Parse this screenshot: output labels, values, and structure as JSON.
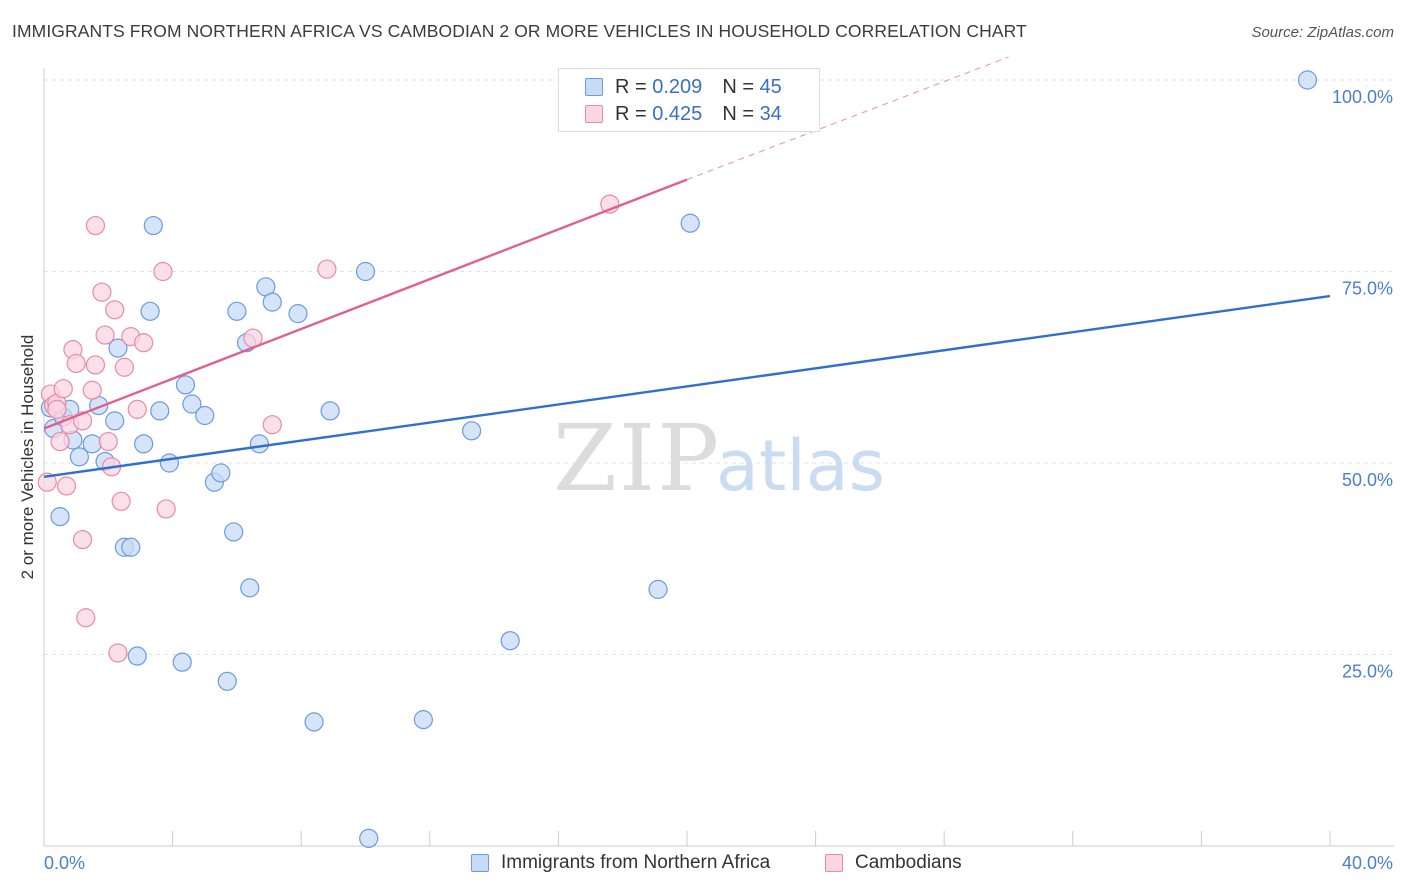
{
  "header": {
    "title": "IMMIGRANTS FROM NORTHERN AFRICA VS CAMBODIAN 2 OR MORE VEHICLES IN HOUSEHOLD CORRELATION CHART",
    "source": "Source: ZipAtlas.com"
  },
  "watermark": {
    "zip": "ZIP",
    "atlas": "atlas"
  },
  "legend": {
    "rows": [
      {
        "r_label": "R =",
        "r_value": "0.209",
        "n_label": "N =",
        "n_value": "45",
        "color": "#a8c6f0",
        "border": "#6b9be0"
      },
      {
        "r_label": "R =",
        "r_value": "0.425",
        "n_label": "N =",
        "n_value": "34",
        "color": "#f8c5d5",
        "border": "#e88aa8"
      }
    ]
  },
  "bottom_legend": [
    {
      "label": "Immigrants from Northern Africa",
      "color": "#c7dbf5",
      "border": "#6b9be0"
    },
    {
      "label": "Cambodians",
      "color": "#fbd6e1",
      "border": "#e88aa8"
    }
  ],
  "chart_data": {
    "type": "scatter",
    "title": "IMMIGRANTS FROM NORTHERN AFRICA VS CAMBODIAN 2 OR MORE VEHICLES IN HOUSEHOLD CORRELATION CHART",
    "xlabel": "",
    "ylabel": "2 or more Vehicles in Household",
    "xlim": [
      0,
      40
    ],
    "ylim": [
      0,
      102
    ],
    "x_tick_labels": [
      "0.0%",
      "40.0%"
    ],
    "y_ticks": [
      25,
      50,
      75,
      100
    ],
    "y_tick_labels": [
      "25.0%",
      "50.0%",
      "75.0%",
      "100.0%"
    ],
    "grid": true,
    "legend_position": "top-center",
    "series": [
      {
        "name": "Immigrants from Northern Africa",
        "color": "#6b9be0",
        "fill": "#c7dbf5",
        "R": 0.209,
        "N": 45,
        "trend": {
          "x0": 0,
          "y0": 48.2,
          "x1": 40,
          "y1": 71.8
        },
        "points": [
          [
            0.3,
            54.5
          ],
          [
            0.5,
            43.0
          ],
          [
            0.6,
            56.0
          ],
          [
            0.8,
            57.0
          ],
          [
            0.9,
            53.0
          ],
          [
            1.1,
            50.8
          ],
          [
            1.5,
            52.5
          ],
          [
            1.7,
            57.5
          ],
          [
            1.9,
            50.2
          ],
          [
            2.2,
            55.5
          ],
          [
            2.3,
            65.0
          ],
          [
            2.5,
            39.0
          ],
          [
            2.7,
            39.0
          ],
          [
            2.9,
            24.8
          ],
          [
            3.1,
            52.5
          ],
          [
            3.3,
            69.8
          ],
          [
            3.4,
            81.0
          ],
          [
            3.6,
            56.8
          ],
          [
            3.9,
            50.0
          ],
          [
            4.3,
            24.0
          ],
          [
            4.4,
            60.2
          ],
          [
            4.6,
            57.7
          ],
          [
            5.0,
            56.2
          ],
          [
            5.3,
            47.5
          ],
          [
            5.5,
            48.7
          ],
          [
            5.7,
            21.5
          ],
          [
            5.9,
            41.0
          ],
          [
            6.0,
            69.8
          ],
          [
            6.3,
            65.7
          ],
          [
            6.4,
            33.7
          ],
          [
            6.7,
            52.5
          ],
          [
            6.9,
            73.0
          ],
          [
            7.1,
            71.0
          ],
          [
            7.9,
            69.5
          ],
          [
            8.4,
            16.2
          ],
          [
            8.9,
            56.8
          ],
          [
            10.0,
            75.0
          ],
          [
            10.1,
            1.0
          ],
          [
            11.8,
            16.5
          ],
          [
            13.3,
            54.2
          ],
          [
            14.5,
            26.8
          ],
          [
            19.1,
            33.5
          ],
          [
            20.1,
            81.3
          ],
          [
            39.3,
            100.0
          ],
          [
            0.2,
            57.2
          ]
        ]
      },
      {
        "name": "Cambodians",
        "color": "#e88aa8",
        "fill": "#fbd6e1",
        "R": 0.425,
        "N": 34,
        "trend": {
          "x0": 0,
          "y0": 54.5,
          "x1": 20,
          "y1": 87.0
        },
        "trend_dashed": {
          "x0": 20,
          "y0": 87.0,
          "x1": 30,
          "y1": 103.0
        },
        "points": [
          [
            0.1,
            47.5
          ],
          [
            0.2,
            59.0
          ],
          [
            0.3,
            57.5
          ],
          [
            0.4,
            57.8
          ],
          [
            0.5,
            52.8
          ],
          [
            0.6,
            59.7
          ],
          [
            0.7,
            47.0
          ],
          [
            0.8,
            55.0
          ],
          [
            0.9,
            64.8
          ],
          [
            1.0,
            63.0
          ],
          [
            1.2,
            40.0
          ],
          [
            1.3,
            29.8
          ],
          [
            1.5,
            59.5
          ],
          [
            1.6,
            62.8
          ],
          [
            1.6,
            81.0
          ],
          [
            1.8,
            72.3
          ],
          [
            1.9,
            66.7
          ],
          [
            2.0,
            52.8
          ],
          [
            2.1,
            49.5
          ],
          [
            2.2,
            70.0
          ],
          [
            2.3,
            25.2
          ],
          [
            2.4,
            45.0
          ],
          [
            2.5,
            62.5
          ],
          [
            2.7,
            66.5
          ],
          [
            2.9,
            57.0
          ],
          [
            3.1,
            65.7
          ],
          [
            3.7,
            75.0
          ],
          [
            3.8,
            44.0
          ],
          [
            6.5,
            66.3
          ],
          [
            7.1,
            55.0
          ],
          [
            8.8,
            75.3
          ],
          [
            17.6,
            83.8
          ],
          [
            0.4,
            57.0
          ],
          [
            1.2,
            55.5
          ]
        ]
      }
    ]
  }
}
